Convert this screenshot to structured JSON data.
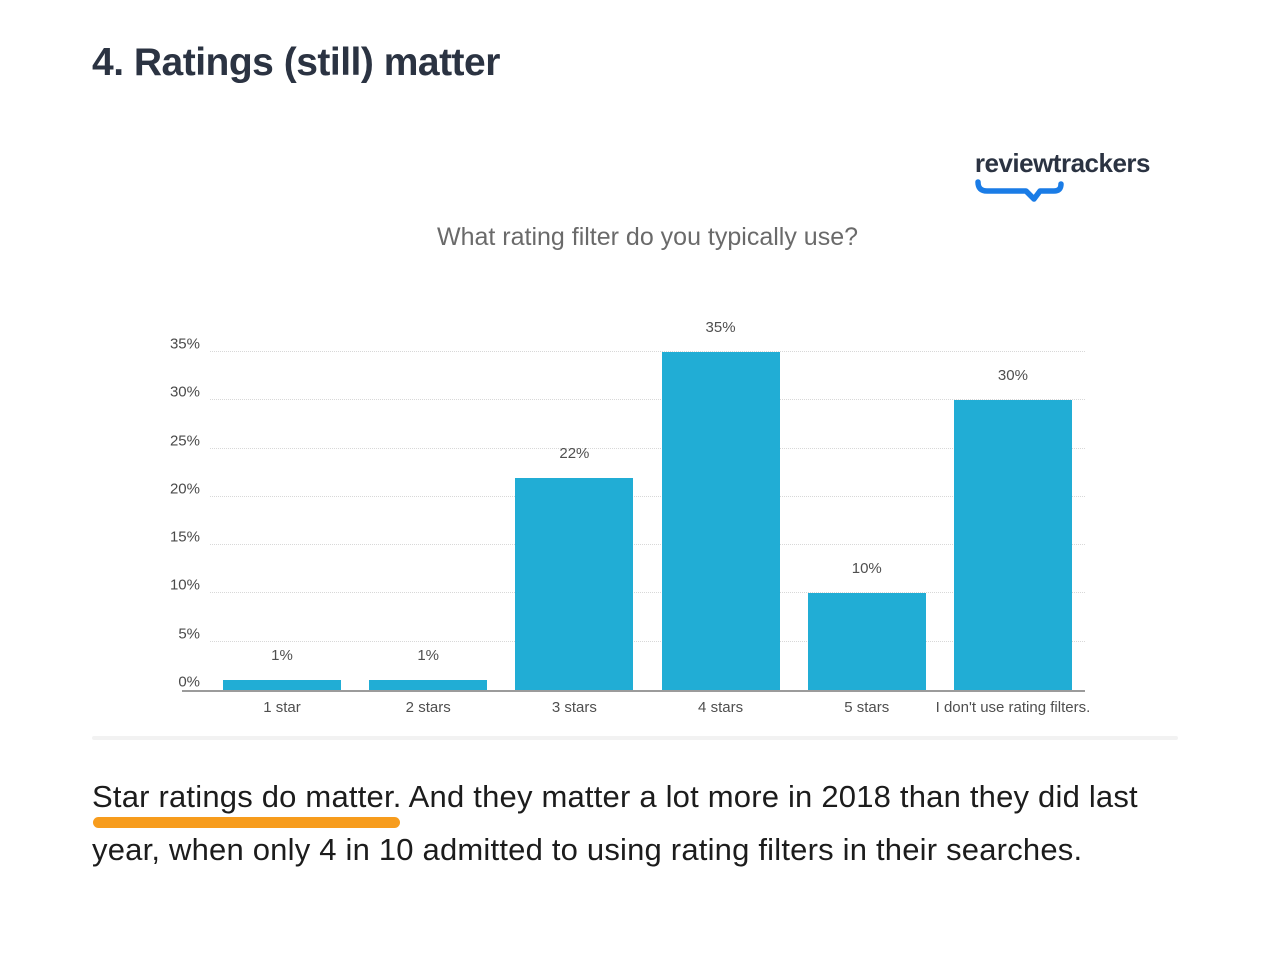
{
  "page_title": "4. Ratings (still) matter",
  "logo": {
    "text": "reviewtrackers",
    "swoosh_color": "#1a7ce6"
  },
  "chart_data": {
    "type": "bar",
    "title": "What rating filter do you typically use?",
    "categories": [
      "1 star",
      "2 stars",
      "3 stars",
      "4 stars",
      "5 stars",
      "I don't use rating filters."
    ],
    "values": [
      1,
      1,
      22,
      35,
      10,
      30
    ],
    "value_labels": [
      "1%",
      "1%",
      "22%",
      "35%",
      "10%",
      "30%"
    ],
    "y_ticks": [
      0,
      5,
      10,
      15,
      20,
      25,
      30,
      35
    ],
    "y_tick_suffix": "%",
    "ylim": [
      0,
      35
    ],
    "grid": true,
    "legend_position": "none",
    "bar_color": "#21ADD5"
  },
  "paragraph": {
    "highlight": "Star ratings do matter.",
    "rest": " And they matter a lot more in 2018 than they did last year, when only 4 in 10 admitted to using rating filters in their searches.",
    "highlight_color": "#F79C1D"
  }
}
